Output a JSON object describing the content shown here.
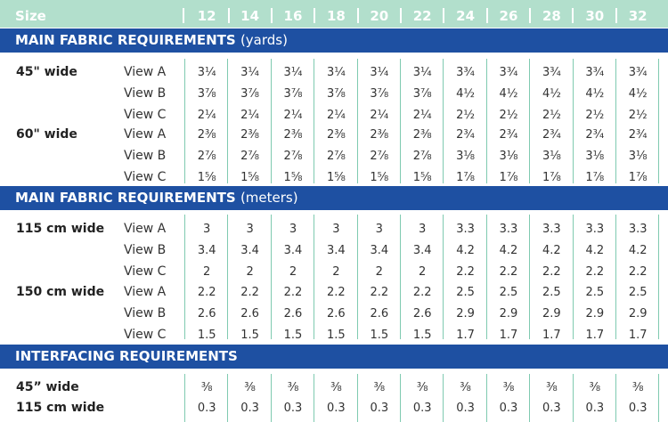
{
  "sizes_header": {
    "title": "Size",
    "sizes": [
      "12",
      "14",
      "16",
      "18",
      "20",
      "22",
      "24",
      "26",
      "28",
      "30",
      "32"
    ]
  },
  "colors": {
    "header_band": "#b2dfcc",
    "section_bar": "#1e50a2",
    "divider": "#7fcab0"
  },
  "sections": [
    {
      "title": "MAIN FABRIC REQUIREMENTS",
      "unit": "(yards)",
      "groups": [
        {
          "label": "45\" wide",
          "rows": [
            {
              "view": "View A",
              "values": [
                "3¼",
                "3¼",
                "3¼",
                "3¼",
                "3¼",
                "3¼",
                "3¾",
                "3¾",
                "3¾",
                "3¾",
                "3¾"
              ]
            },
            {
              "view": "View B",
              "values": [
                "3⅞",
                "3⅞",
                "3⅞",
                "3⅞",
                "3⅞",
                "3⅞",
                "4½",
                "4½",
                "4½",
                "4½",
                "4½"
              ]
            },
            {
              "view": "View C",
              "values": [
                "2¼",
                "2¼",
                "2¼",
                "2¼",
                "2¼",
                "2¼",
                "2½",
                "2½",
                "2½",
                "2½",
                "2½"
              ]
            }
          ]
        },
        {
          "label": "60\" wide",
          "rows": [
            {
              "view": "View A",
              "values": [
                "2⅜",
                "2⅜",
                "2⅜",
                "2⅜",
                "2⅜",
                "2⅜",
                "2¾",
                "2¾",
                "2¾",
                "2¾",
                "2¾"
              ]
            },
            {
              "view": "View B",
              "values": [
                "2⅞",
                "2⅞",
                "2⅞",
                "2⅞",
                "2⅞",
                "2⅞",
                "3⅛",
                "3⅛",
                "3⅛",
                "3⅛",
                "3⅛"
              ]
            },
            {
              "view": "View C",
              "values": [
                "1⅝",
                "1⅝",
                "1⅝",
                "1⅝",
                "1⅝",
                "1⅝",
                "1⅞",
                "1⅞",
                "1⅞",
                "1⅞",
                "1⅞"
              ]
            }
          ]
        }
      ]
    },
    {
      "title": "MAIN FABRIC REQUIREMENTS",
      "unit": "(meters)",
      "groups": [
        {
          "label": "115 cm wide",
          "rows": [
            {
              "view": "View A",
              "values": [
                "3",
                "3",
                "3",
                "3",
                "3",
                "3",
                "3.3",
                "3.3",
                "3.3",
                "3.3",
                "3.3"
              ]
            },
            {
              "view": "View B",
              "values": [
                "3.4",
                "3.4",
                "3.4",
                "3.4",
                "3.4",
                "3.4",
                "4.2",
                "4.2",
                "4.2",
                "4.2",
                "4.2"
              ]
            },
            {
              "view": "View C",
              "values": [
                "2",
                "2",
                "2",
                "2",
                "2",
                "2",
                "2.2",
                "2.2",
                "2.2",
                "2.2",
                "2.2"
              ]
            }
          ]
        },
        {
          "label": "150 cm wide",
          "rows": [
            {
              "view": "View A",
              "values": [
                "2.2",
                "2.2",
                "2.2",
                "2.2",
                "2.2",
                "2.2",
                "2.5",
                "2.5",
                "2.5",
                "2.5",
                "2.5"
              ]
            },
            {
              "view": "View B",
              "values": [
                "2.6",
                "2.6",
                "2.6",
                "2.6",
                "2.6",
                "2.6",
                "2.9",
                "2.9",
                "2.9",
                "2.9",
                "2.9"
              ]
            },
            {
              "view": "View C",
              "values": [
                "1.5",
                "1.5",
                "1.5",
                "1.5",
                "1.5",
                "1.5",
                "1.7",
                "1.7",
                "1.7",
                "1.7",
                "1.7"
              ]
            }
          ]
        }
      ]
    },
    {
      "title": "INTERFACING REQUIREMENTS",
      "unit": "",
      "groups": [
        {
          "label": "45” wide",
          "rows": [
            {
              "view": "",
              "values": [
                "⅜",
                "⅜",
                "⅜",
                "⅜",
                "⅜",
                "⅜",
                "⅜",
                "⅜",
                "⅜",
                "⅜",
                "⅜"
              ]
            }
          ]
        },
        {
          "label": "115 cm wide",
          "rows": [
            {
              "view": "",
              "values": [
                "0.3",
                "0.3",
                "0.3",
                "0.3",
                "0.3",
                "0.3",
                "0.3",
                "0.3",
                "0.3",
                "0.3",
                "0.3"
              ]
            }
          ]
        }
      ]
    }
  ]
}
